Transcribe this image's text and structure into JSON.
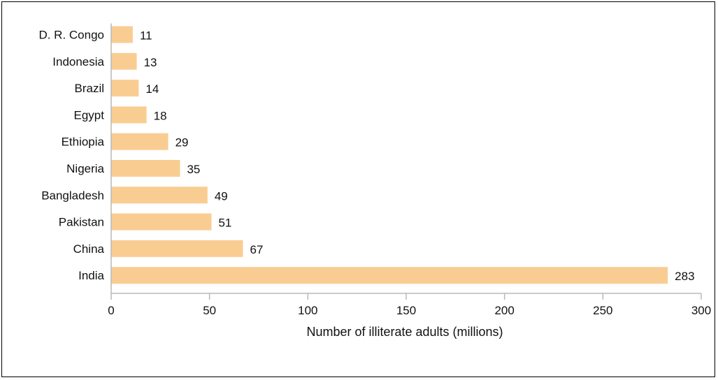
{
  "chart_data": {
    "type": "bar",
    "orientation": "horizontal",
    "categories": [
      "D. R. Congo",
      "Indonesia",
      "Brazil",
      "Egypt",
      "Ethiopia",
      "Nigeria",
      "Bangladesh",
      "Pakistan",
      "China",
      "India"
    ],
    "values": [
      11,
      13,
      14,
      18,
      29,
      35,
      49,
      51,
      67,
      283
    ],
    "data_labels": [
      "11",
      "13",
      "14",
      "18",
      "29",
      "35",
      "49",
      "51",
      "67",
      "283"
    ],
    "xlabel": "Number of illiterate adults (millions)",
    "xlim": [
      0,
      300
    ],
    "xticks": [
      0,
      50,
      100,
      150,
      200,
      250,
      300
    ],
    "grid": false,
    "legend": "none",
    "bar_color": "#f9cd92",
    "axis_color": "#b8b8b8"
  }
}
